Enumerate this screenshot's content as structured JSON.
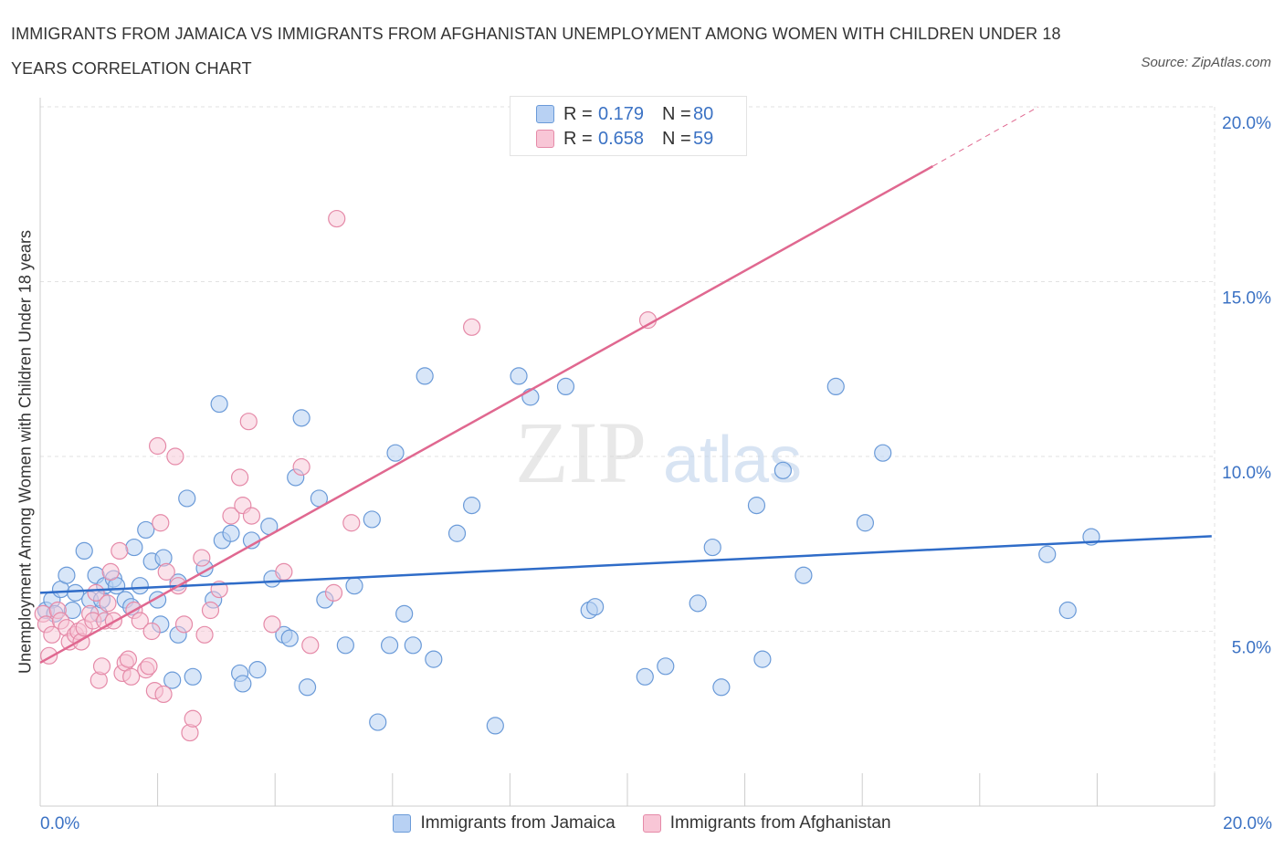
{
  "header": {
    "title": "IMMIGRANTS FROM JAMAICA VS IMMIGRANTS FROM AFGHANISTAN UNEMPLOYMENT AMONG WOMEN WITH CHILDREN UNDER 18 YEARS CORRELATION CHART",
    "source": "Source: ZipAtlas.com"
  },
  "watermark": {
    "zip": "ZIP",
    "atlas": "atlas"
  },
  "colors": {
    "jamaica_fill": "#b8d1f3",
    "jamaica_stroke": "#6a9ad8",
    "jamaica_line": "#2f6cc8",
    "afghanistan_fill": "#f8c6d6",
    "afghanistan_stroke": "#e58aa8",
    "afghanistan_line": "#e06890",
    "tick_label": "#3b72c4"
  },
  "legend": {
    "rows": [
      {
        "r_label": "R =",
        "r_value": "0.179",
        "n_label": "N =",
        "n_value": "80"
      },
      {
        "r_label": "R =",
        "r_value": "0.658",
        "n_label": "N =",
        "n_value": "59"
      }
    ]
  },
  "bottom_legend": [
    "Immigrants from Jamaica",
    "Immigrants from Afghanistan"
  ],
  "chart_data": {
    "type": "scatter",
    "title": "IMMIGRANTS FROM JAMAICA VS IMMIGRANTS FROM AFGHANISTAN UNEMPLOYMENT AMONG WOMEN WITH CHILDREN UNDER 18 YEARS CORRELATION CHART",
    "xlabel": "",
    "ylabel": "Unemployment Among Women with Children Under 18 years",
    "xlim": [
      0,
      20
    ],
    "ylim": [
      0,
      20
    ],
    "x_tick_labels": [
      "0.0%",
      "20.0%"
    ],
    "y_ticks": [
      5,
      10,
      15,
      20
    ],
    "y_tick_labels": [
      "5.0%",
      "10.0%",
      "15.0%",
      "20.0%"
    ],
    "grid": true,
    "legend_position": "top-center",
    "series": [
      {
        "name": "Immigrants from Jamaica",
        "r": 0.179,
        "n": 80,
        "trend": {
          "x": [
            0.0,
            19.95
          ],
          "y": [
            6.1,
            7.72
          ]
        },
        "points": [
          [
            0.1,
            5.6
          ],
          [
            0.2,
            5.9
          ],
          [
            0.25,
            5.5
          ],
          [
            0.35,
            6.2
          ],
          [
            0.45,
            6.6
          ],
          [
            0.55,
            5.6
          ],
          [
            0.6,
            6.1
          ],
          [
            0.75,
            7.3
          ],
          [
            0.85,
            5.9
          ],
          [
            0.95,
            6.6
          ],
          [
            1.0,
            5.5
          ],
          [
            1.05,
            5.9
          ],
          [
            1.1,
            6.3
          ],
          [
            1.25,
            6.5
          ],
          [
            1.3,
            6.3
          ],
          [
            1.45,
            5.9
          ],
          [
            1.55,
            5.7
          ],
          [
            1.6,
            7.4
          ],
          [
            1.7,
            6.3
          ],
          [
            1.8,
            7.9
          ],
          [
            1.9,
            7.0
          ],
          [
            2.0,
            5.9
          ],
          [
            2.05,
            5.2
          ],
          [
            2.1,
            7.1
          ],
          [
            2.25,
            3.6
          ],
          [
            2.35,
            6.4
          ],
          [
            2.35,
            4.9
          ],
          [
            2.5,
            8.8
          ],
          [
            2.6,
            3.7
          ],
          [
            2.8,
            6.8
          ],
          [
            2.95,
            5.9
          ],
          [
            3.05,
            11.5
          ],
          [
            3.1,
            7.6
          ],
          [
            3.25,
            7.8
          ],
          [
            3.4,
            3.8
          ],
          [
            3.45,
            3.5
          ],
          [
            3.6,
            7.6
          ],
          [
            3.7,
            3.9
          ],
          [
            3.9,
            8.0
          ],
          [
            3.95,
            6.5
          ],
          [
            4.15,
            4.9
          ],
          [
            4.25,
            4.8
          ],
          [
            4.35,
            9.4
          ],
          [
            4.45,
            11.1
          ],
          [
            4.55,
            3.4
          ],
          [
            4.75,
            8.8
          ],
          [
            4.85,
            5.9
          ],
          [
            5.2,
            4.6
          ],
          [
            5.35,
            6.3
          ],
          [
            5.65,
            8.2
          ],
          [
            5.75,
            2.4
          ],
          [
            5.95,
            4.6
          ],
          [
            6.05,
            10.1
          ],
          [
            6.2,
            5.5
          ],
          [
            6.35,
            4.6
          ],
          [
            6.55,
            12.3
          ],
          [
            6.7,
            4.2
          ],
          [
            7.1,
            7.8
          ],
          [
            7.35,
            8.6
          ],
          [
            7.75,
            2.3
          ],
          [
            8.15,
            12.3
          ],
          [
            8.35,
            11.7
          ],
          [
            8.95,
            12.0
          ],
          [
            9.35,
            5.6
          ],
          [
            9.45,
            5.7
          ],
          [
            10.3,
            3.7
          ],
          [
            10.65,
            4.0
          ],
          [
            11.2,
            5.8
          ],
          [
            11.45,
            7.4
          ],
          [
            11.6,
            3.4
          ],
          [
            12.2,
            8.6
          ],
          [
            12.3,
            4.2
          ],
          [
            12.65,
            9.6
          ],
          [
            13.0,
            6.6
          ],
          [
            13.55,
            12.0
          ],
          [
            14.05,
            8.1
          ],
          [
            14.35,
            10.1
          ],
          [
            17.15,
            7.2
          ],
          [
            17.5,
            5.6
          ],
          [
            17.9,
            7.7
          ]
        ]
      },
      {
        "name": "Immigrants from Afghanistan",
        "r": 0.658,
        "n": 59,
        "trend": {
          "x": [
            0.0,
            15.2
          ],
          "y": [
            4.1,
            18.3
          ],
          "dashed_to": {
            "x": 17.0,
            "y": 20.0
          }
        },
        "points": [
          [
            0.05,
            5.5
          ],
          [
            0.1,
            5.2
          ],
          [
            0.15,
            4.3
          ],
          [
            0.2,
            4.9
          ],
          [
            0.3,
            5.6
          ],
          [
            0.35,
            5.3
          ],
          [
            0.45,
            5.1
          ],
          [
            0.5,
            4.7
          ],
          [
            0.6,
            4.9
          ],
          [
            0.65,
            5.0
          ],
          [
            0.7,
            4.7
          ],
          [
            0.75,
            5.1
          ],
          [
            0.85,
            5.5
          ],
          [
            0.9,
            5.3
          ],
          [
            0.95,
            6.1
          ],
          [
            1.0,
            3.6
          ],
          [
            1.05,
            4.0
          ],
          [
            1.1,
            5.3
          ],
          [
            1.15,
            5.8
          ],
          [
            1.2,
            6.7
          ],
          [
            1.25,
            5.3
          ],
          [
            1.35,
            7.3
          ],
          [
            1.4,
            3.8
          ],
          [
            1.45,
            4.1
          ],
          [
            1.5,
            4.2
          ],
          [
            1.55,
            3.7
          ],
          [
            1.6,
            5.6
          ],
          [
            1.7,
            5.3
          ],
          [
            1.8,
            3.9
          ],
          [
            1.85,
            4.0
          ],
          [
            1.9,
            5.0
          ],
          [
            1.95,
            3.3
          ],
          [
            2.0,
            10.3
          ],
          [
            2.05,
            8.1
          ],
          [
            2.1,
            3.2
          ],
          [
            2.15,
            6.7
          ],
          [
            2.3,
            10.0
          ],
          [
            2.35,
            6.3
          ],
          [
            2.45,
            5.2
          ],
          [
            2.55,
            2.1
          ],
          [
            2.6,
            2.5
          ],
          [
            2.75,
            7.1
          ],
          [
            2.8,
            4.9
          ],
          [
            2.9,
            5.6
          ],
          [
            3.05,
            6.2
          ],
          [
            3.25,
            8.3
          ],
          [
            3.4,
            9.4
          ],
          [
            3.45,
            8.6
          ],
          [
            3.55,
            11.0
          ],
          [
            3.6,
            8.3
          ],
          [
            3.95,
            5.2
          ],
          [
            4.15,
            6.7
          ],
          [
            4.45,
            9.7
          ],
          [
            4.6,
            4.6
          ],
          [
            5.05,
            16.8
          ],
          [
            5.3,
            8.1
          ],
          [
            7.35,
            13.7
          ],
          [
            10.35,
            13.9
          ],
          [
            5.0,
            6.1
          ]
        ]
      }
    ]
  }
}
